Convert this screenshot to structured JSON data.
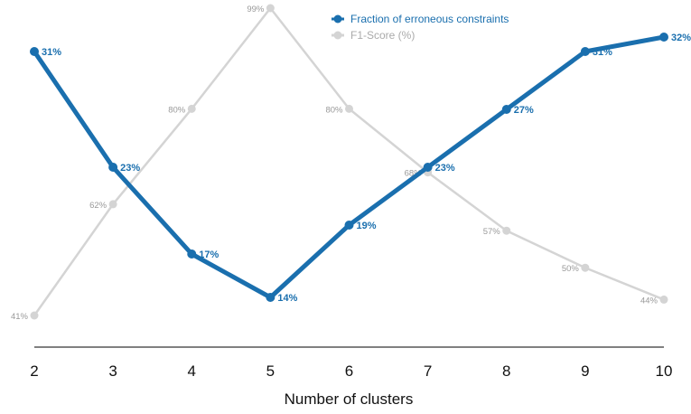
{
  "chart_data": {
    "type": "line",
    "x": [
      2,
      3,
      4,
      5,
      6,
      7,
      8,
      9,
      10
    ],
    "xlabel": "Number of clusters",
    "ylabel": "",
    "title": "",
    "grid": false,
    "legend_position": "top-center",
    "series": [
      {
        "name": "Fraction of erroneous constraints",
        "values": [
          31,
          23,
          17,
          14,
          19,
          23,
          27,
          31,
          32
        ],
        "labels": [
          "31%",
          "23%",
          "17%",
          "14%",
          "19%",
          "23%",
          "27%",
          "31%",
          "32%"
        ],
        "color": "#1a6fae"
      },
      {
        "name": "F1-Score (%)",
        "values": [
          41,
          62,
          80,
          99,
          80,
          68,
          57,
          50,
          44
        ],
        "labels": [
          "41%",
          "62%",
          "80%",
          "99%",
          "80%",
          "68%",
          "57%",
          "50%",
          "44%"
        ],
        "color": "#d4d4d4"
      }
    ]
  }
}
